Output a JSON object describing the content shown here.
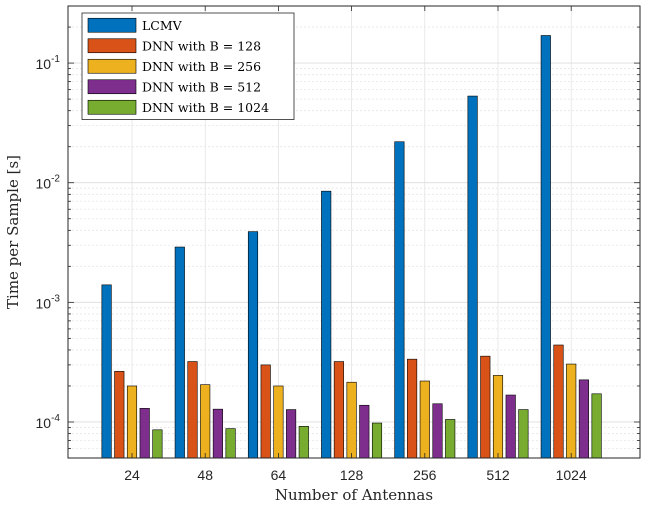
{
  "chart_data": {
    "type": "bar",
    "xlabel": "Number of Antennas",
    "ylabel": "Time per Sample [s]",
    "yscale": "log",
    "ylim": [
      5e-05,
      0.3
    ],
    "grid": true,
    "legend_position": "top-left",
    "categories": [
      "24",
      "48",
      "64",
      "128",
      "256",
      "512",
      "1024"
    ],
    "yticks": [
      {
        "value": 0.0001,
        "base": "10",
        "exp": "-4"
      },
      {
        "value": 0.001,
        "base": "10",
        "exp": "-3"
      },
      {
        "value": 0.01,
        "base": "10",
        "exp": "-2"
      },
      {
        "value": 0.1,
        "base": "10",
        "exp": "-1"
      }
    ],
    "series": [
      {
        "name": "LCMV",
        "color": "#0072BD",
        "values": [
          0.0014,
          0.0029,
          0.0039,
          0.0085,
          0.022,
          0.053,
          0.17
        ]
      },
      {
        "name": "DNN with B = 128",
        "color": "#D95319",
        "values": [
          0.000265,
          0.00032,
          0.0003,
          0.00032,
          0.000335,
          0.000355,
          0.00044
        ]
      },
      {
        "name": "DNN with B = 256",
        "color": "#EDB120",
        "values": [
          0.0002,
          0.000205,
          0.0002,
          0.000215,
          0.00022,
          0.000245,
          0.000305
        ]
      },
      {
        "name": "DNN with B = 512",
        "color": "#7E2F8E",
        "values": [
          0.00013,
          0.000128,
          0.000127,
          0.000138,
          0.000142,
          0.000168,
          0.000225
        ]
      },
      {
        "name": "DNN with B = 1024",
        "color": "#77AC30",
        "values": [
          8.6e-05,
          8.8e-05,
          9.2e-05,
          9.8e-05,
          0.000105,
          0.000127,
          0.000172
        ]
      }
    ]
  }
}
